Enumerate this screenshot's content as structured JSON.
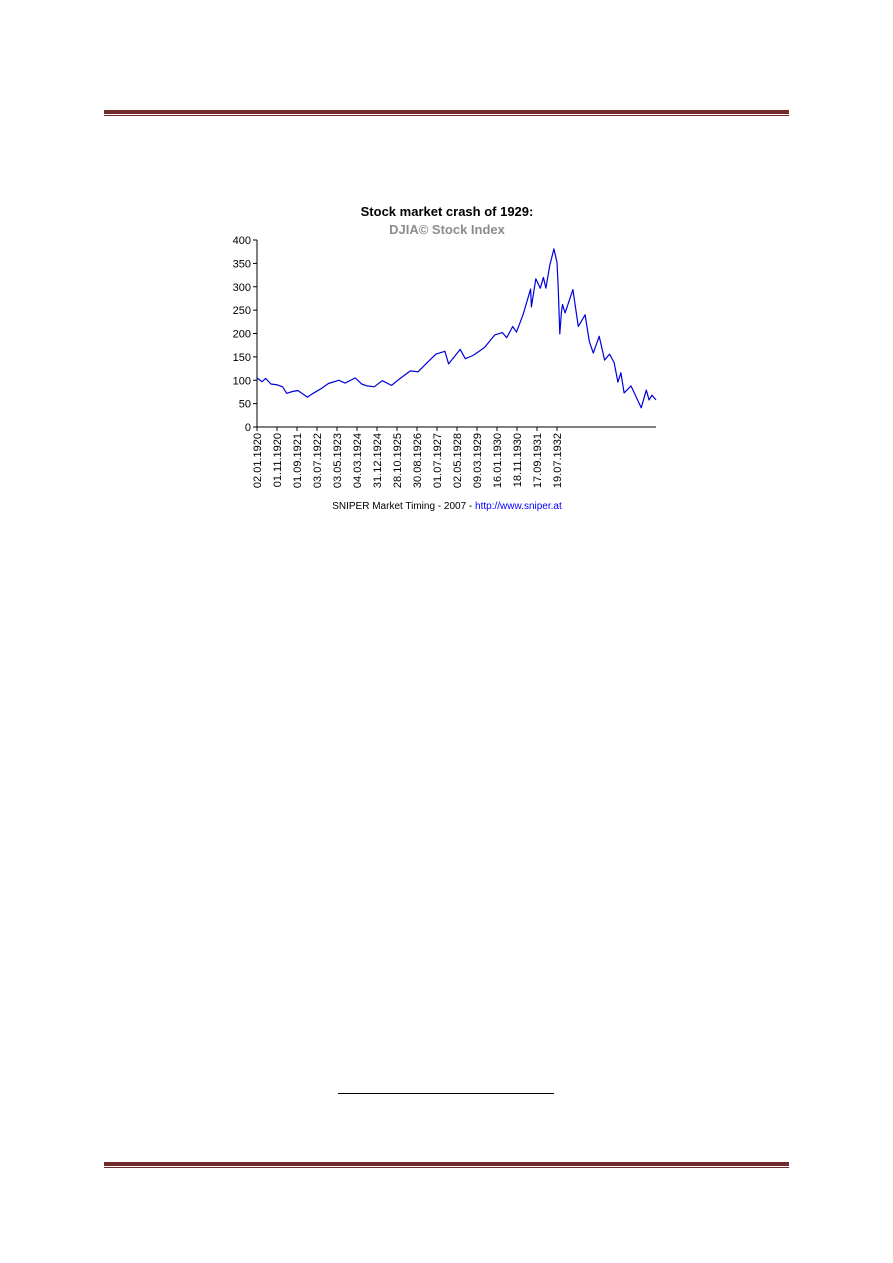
{
  "colors": {
    "rule": "#722a2a",
    "series": "#0000dd",
    "subtitle": "#8c8c8c",
    "link": "#0000ff"
  },
  "chart_data": {
    "type": "line",
    "title": "Stock market crash of 1929:",
    "subtitle": "DJIA©  Stock Index",
    "xlabel": "",
    "ylabel": "",
    "ylim": [
      0,
      400
    ],
    "yticks": [
      0,
      50,
      100,
      150,
      200,
      250,
      300,
      350,
      400
    ],
    "xlim": [
      "1920-01-02",
      "1932-12-31"
    ],
    "xtick_labels": [
      "02.01.1920",
      "01.11.1920",
      "01.09.1921",
      "03.07.1922",
      "03.05.1923",
      "04.03.1924",
      "31.12.1924",
      "28.10.1925",
      "30.08.1926",
      "01.07.1927",
      "02.05.1928",
      "09.03.1929",
      "16.01.1930",
      "18.11.1930",
      "17.09.1931",
      "19.07.1932"
    ],
    "grid": false,
    "legend": "none",
    "credit": {
      "text": "SNIPER Market Timing - 2007 - ",
      "link": "http://www.sniper.at"
    },
    "series": [
      {
        "values": [
          {
            "x": "1920-01-02",
            "y": 105
          },
          {
            "x": "1920-03-01",
            "y": 97
          },
          {
            "x": "1920-04-15",
            "y": 104
          },
          {
            "x": "1920-06-15",
            "y": 92
          },
          {
            "x": "1920-09-01",
            "y": 90
          },
          {
            "x": "1920-11-01",
            "y": 86
          },
          {
            "x": "1920-12-20",
            "y": 72
          },
          {
            "x": "1921-03-01",
            "y": 76
          },
          {
            "x": "1921-05-01",
            "y": 78
          },
          {
            "x": "1921-08-24",
            "y": 64
          },
          {
            "x": "1921-11-01",
            "y": 72
          },
          {
            "x": "1922-02-01",
            "y": 82
          },
          {
            "x": "1922-05-01",
            "y": 93
          },
          {
            "x": "1922-09-01",
            "y": 100
          },
          {
            "x": "1922-11-15",
            "y": 94
          },
          {
            "x": "1923-03-15",
            "y": 105
          },
          {
            "x": "1923-06-01",
            "y": 92
          },
          {
            "x": "1923-08-01",
            "y": 88
          },
          {
            "x": "1923-10-27",
            "y": 86
          },
          {
            "x": "1924-02-01",
            "y": 99
          },
          {
            "x": "1924-05-20",
            "y": 89
          },
          {
            "x": "1924-09-01",
            "y": 104
          },
          {
            "x": "1924-12-31",
            "y": 120
          },
          {
            "x": "1925-04-01",
            "y": 118
          },
          {
            "x": "1925-08-01",
            "y": 140
          },
          {
            "x": "1925-11-01",
            "y": 156
          },
          {
            "x": "1926-02-15",
            "y": 162
          },
          {
            "x": "1926-03-30",
            "y": 135
          },
          {
            "x": "1926-08-15",
            "y": 166
          },
          {
            "x": "1926-10-15",
            "y": 146
          },
          {
            "x": "1927-01-15",
            "y": 153
          },
          {
            "x": "1927-06-01",
            "y": 170
          },
          {
            "x": "1927-10-01",
            "y": 197
          },
          {
            "x": "1927-12-31",
            "y": 202
          },
          {
            "x": "1928-02-20",
            "y": 191
          },
          {
            "x": "1928-05-01",
            "y": 215
          },
          {
            "x": "1928-06-15",
            "y": 203
          },
          {
            "x": "1928-09-01",
            "y": 240
          },
          {
            "x": "1928-11-30",
            "y": 295
          },
          {
            "x": "1928-12-10",
            "y": 257
          },
          {
            "x": "1929-01-31",
            "y": 317
          },
          {
            "x": "1929-03-26",
            "y": 297
          },
          {
            "x": "1929-05-01",
            "y": 320
          },
          {
            "x": "1929-05-31",
            "y": 297
          },
          {
            "x": "1929-07-15",
            "y": 345
          },
          {
            "x": "1929-09-03",
            "y": 381
          },
          {
            "x": "1929-10-10",
            "y": 352
          },
          {
            "x": "1929-10-24",
            "y": 299
          },
          {
            "x": "1929-11-13",
            "y": 199
          },
          {
            "x": "1929-12-01",
            "y": 245
          },
          {
            "x": "1929-12-15",
            "y": 262
          },
          {
            "x": "1930-01-15",
            "y": 244
          },
          {
            "x": "1930-04-17",
            "y": 294
          },
          {
            "x": "1930-06-20",
            "y": 215
          },
          {
            "x": "1930-09-10",
            "y": 240
          },
          {
            "x": "1930-10-30",
            "y": 183
          },
          {
            "x": "1930-12-16",
            "y": 158
          },
          {
            "x": "1931-02-24",
            "y": 194
          },
          {
            "x": "1931-04-30",
            "y": 143
          },
          {
            "x": "1931-06-27",
            "y": 156
          },
          {
            "x": "1931-08-20",
            "y": 138
          },
          {
            "x": "1931-10-05",
            "y": 96
          },
          {
            "x": "1931-11-09",
            "y": 116
          },
          {
            "x": "1931-12-17",
            "y": 73
          },
          {
            "x": "1932-03-08",
            "y": 88
          },
          {
            "x": "1932-07-08",
            "y": 41
          },
          {
            "x": "1932-09-07",
            "y": 79
          },
          {
            "x": "1932-10-10",
            "y": 58
          },
          {
            "x": "1932-11-12",
            "y": 68
          },
          {
            "x": "1932-12-31",
            "y": 58
          }
        ]
      }
    ]
  }
}
